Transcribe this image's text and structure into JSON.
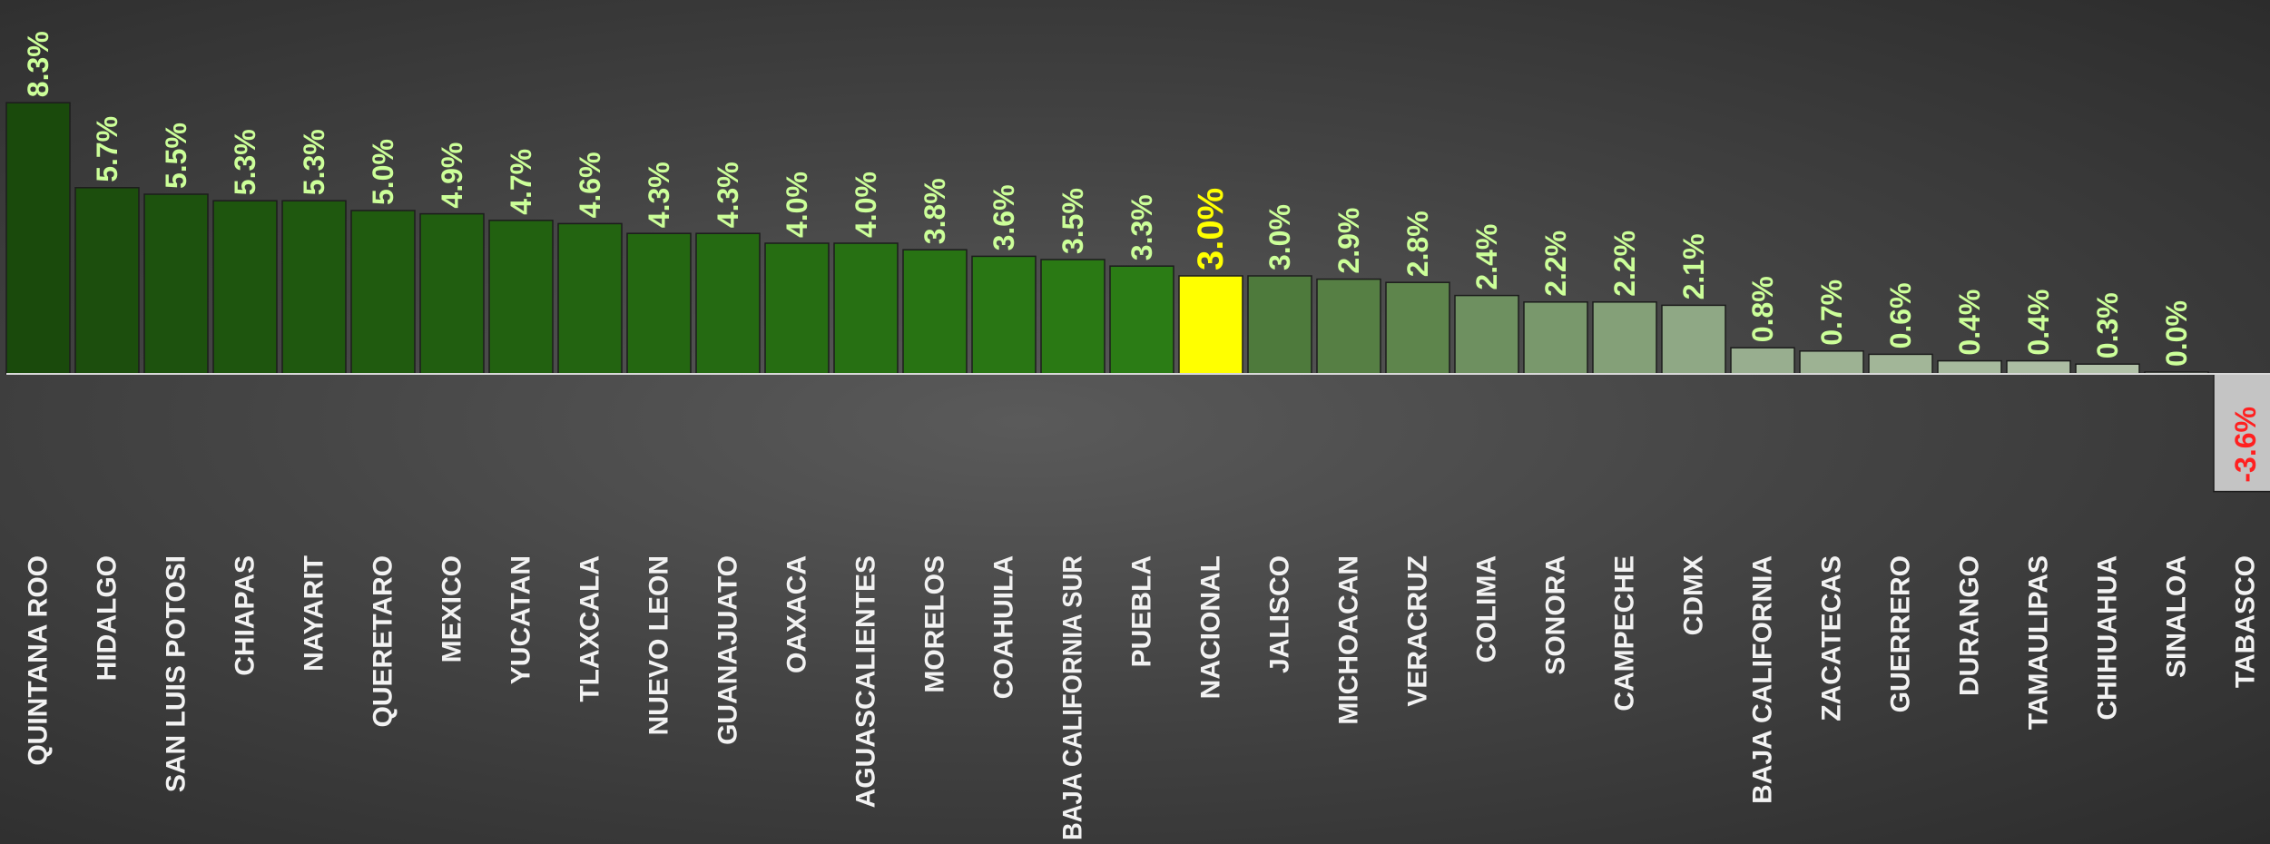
{
  "chart_data": {
    "type": "bar",
    "title": "",
    "xlabel": "",
    "ylabel": "",
    "ylim": [
      -3.6,
      8.3
    ],
    "grid": false,
    "categories": [
      "QUINTANA ROO",
      "HIDALGO",
      "SAN LUIS POTOSI",
      "CHIAPAS",
      "NAYARIT",
      "QUERETARO",
      "MEXICO",
      "YUCATAN",
      "TLAXCALA",
      "NUEVO LEON",
      "GUANAJUATO",
      "OAXACA",
      "AGUASCALIENTES",
      "MORELOS",
      "COAHUILA",
      "BAJA CALIFORNIA SUR",
      "PUEBLA",
      "NACIONAL",
      "JALISCO",
      "MICHOACAN",
      "VERACRUZ",
      "COLIMA",
      "SONORA",
      "CAMPECHE",
      "CDMX",
      "BAJA CALIFORNIA",
      "ZACATECAS",
      "GUERRERO",
      "DURANGO",
      "TAMAULIPAS",
      "CHIHUAHUA",
      "SINALOA",
      "TABASCO"
    ],
    "values": [
      8.3,
      5.7,
      5.5,
      5.3,
      5.3,
      5.0,
      4.9,
      4.7,
      4.6,
      4.3,
      4.3,
      4.0,
      4.0,
      3.8,
      3.6,
      3.5,
      3.3,
      3.0,
      3.0,
      2.9,
      2.8,
      2.4,
      2.2,
      2.2,
      2.1,
      0.8,
      0.7,
      0.6,
      0.4,
      0.4,
      0.3,
      0.0,
      -3.6
    ],
    "value_labels": [
      "8.3%",
      "5.7%",
      "5.5%",
      "5.3%",
      "5.3%",
      "5.0%",
      "4.9%",
      "4.7%",
      "4.6%",
      "4.3%",
      "4.3%",
      "4.0%",
      "4.0%",
      "3.8%",
      "3.6%",
      "3.5%",
      "3.3%",
      "3.0%",
      "3.0%",
      "2.9%",
      "2.8%",
      "2.4%",
      "2.2%",
      "2.2%",
      "2.1%",
      "0.8%",
      "0.7%",
      "0.6%",
      "0.4%",
      "0.4%",
      "0.3%",
      "0.0%",
      "-3.6%"
    ],
    "bar_colors": [
      "#1a4a0c",
      "#1c4e0d",
      "#1d520e",
      "#1e550e",
      "#1f580f",
      "#205b0f",
      "#215e10",
      "#226110",
      "#236411",
      "#246711",
      "#256a12",
      "#266d12",
      "#277013",
      "#287313",
      "#297614",
      "#2a7914",
      "#2b7c15",
      "#ffff00",
      "#4e7a3c",
      "#567f44",
      "#5e854c",
      "#6e9060",
      "#79986c",
      "#84a078",
      "#8fa885",
      "#98ae8f",
      "#9db293",
      "#a2b698",
      "#a7ba9e",
      "#acbda3",
      "#b1c1a8",
      "#b5c4ad",
      "#c4c4c4"
    ],
    "colors": {
      "label": "#ccff99",
      "highlight": "#ffff00",
      "negative": "#ff2020",
      "category": "#f2f2f2",
      "axis": "#d8d8d8"
    },
    "highlight_category": "NACIONAL"
  }
}
